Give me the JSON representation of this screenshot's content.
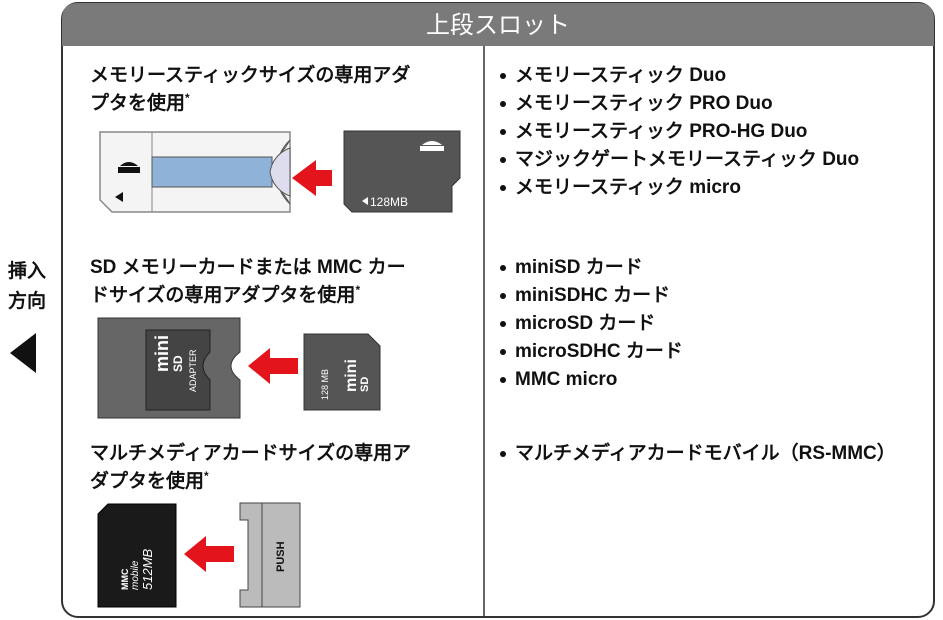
{
  "side_label": {
    "lines": [
      "挿入",
      "方向"
    ]
  },
  "header": {
    "title": "上段スロット"
  },
  "rows": [
    {
      "caption_lines": [
        "メモリースティックサイズの専用アダ",
        "プタを使用"
      ],
      "note_mark": "*",
      "illustration": {
        "card_label": "128MB"
      },
      "items": [
        "メモリースティック Duo",
        "メモリースティック PRO Duo",
        "メモリースティック PRO-HG Duo",
        "マジックゲートメモリースティック Duo",
        "メモリースティック micro"
      ]
    },
    {
      "caption_lines": [
        "SD メモリーカードまたは MMC カー",
        "ドサイズの専用アダプタを使用"
      ],
      "note_mark": "*",
      "illustration": {
        "logo_top": "mini",
        "logo_bottom": "SD",
        "adapter_label": "ADAPTER",
        "card_label": "128 MB"
      },
      "items": [
        "miniSD カード",
        "miniSDHC カード",
        "microSD カード",
        "microSDHC カード",
        "MMC micro"
      ]
    },
    {
      "caption_lines": [
        "マルチメディアカードサイズの専用ア",
        "ダプタを使用"
      ],
      "note_mark": "*",
      "illustration": {
        "card_brand": "MMC",
        "card_sub": "mobile",
        "card_label": "512MB",
        "adapter_label": "PUSH"
      },
      "items": [
        "マルチメディアカードモバイル（RS-MMC）"
      ]
    }
  ]
}
